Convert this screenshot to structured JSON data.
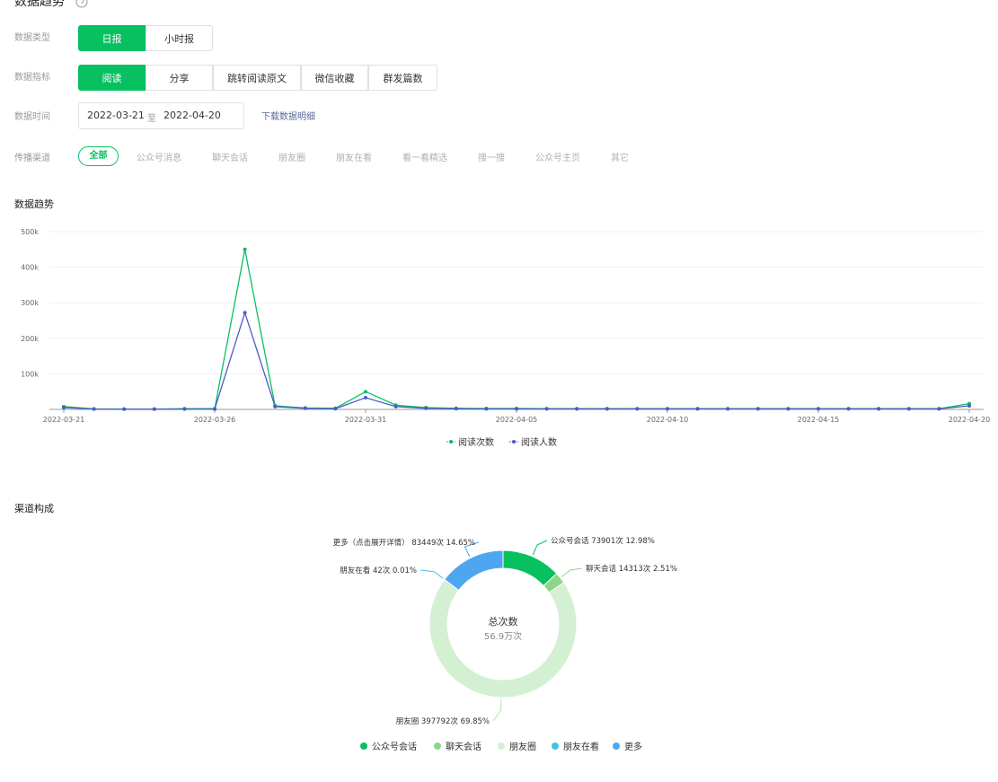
{
  "header": {
    "title": "数据趋势"
  },
  "filters": [
    {
      "label": "数据类型",
      "options": [
        "日报",
        "小时报"
      ],
      "active": 0
    },
    {
      "label": "数据指标",
      "options": [
        "阅读",
        "分享",
        "跳转阅读原文",
        "微信收藏",
        "群发篇数"
      ],
      "active": 0
    },
    {
      "label": "数据时间",
      "start": "2022-03-21",
      "separator": "至",
      "end": "2022-04-20",
      "link": "下载数据明细"
    },
    {
      "label": "传播渠道",
      "options": [
        "全部",
        "公众号消息",
        "聊天会话",
        "朋友圈",
        "朋友在看",
        "看一看精选",
        "搜一搜",
        "公众号主页",
        "其它"
      ],
      "active": 0
    }
  ],
  "chart_data": [
    {
      "type": "line",
      "title": "数据趋势",
      "categories": [
        "2022-03-21",
        null,
        null,
        null,
        null,
        "2022-03-26",
        null,
        null,
        null,
        null,
        "2022-03-31",
        null,
        null,
        null,
        null,
        "2022-04-05",
        null,
        null,
        null,
        null,
        "2022-04-10",
        null,
        null,
        null,
        null,
        "2022-04-15",
        null,
        null,
        null,
        null,
        "2022-04-20"
      ],
      "series": [
        {
          "name": "阅读次数",
          "color": "#07c160",
          "values": [
            8000,
            1500,
            1000,
            1000,
            2000,
            2000,
            450000,
            10000,
            4000,
            3000,
            50000,
            12000,
            5000,
            3000,
            2500,
            2500,
            2000,
            2000,
            2000,
            2000,
            2000,
            2000,
            2000,
            2000,
            2000,
            2000,
            2000,
            2000,
            2000,
            2000,
            16000
          ]
        },
        {
          "name": "阅读人数",
          "color": "#4b5cc4",
          "values": [
            5000,
            1000,
            500,
            500,
            1000,
            1000,
            272000,
            8000,
            3000,
            2000,
            33000,
            8000,
            3000,
            2000,
            1500,
            1500,
            1500,
            1500,
            1500,
            1500,
            1500,
            1500,
            1500,
            1500,
            1500,
            1500,
            1500,
            1500,
            1500,
            1500,
            10000
          ]
        }
      ],
      "ylim": [
        0,
        500000
      ],
      "yticks": [
        {
          "value": 100000,
          "label": "100k"
        },
        {
          "value": 200000,
          "label": "200k"
        },
        {
          "value": 300000,
          "label": "300k"
        },
        {
          "value": 400000,
          "label": "400k"
        },
        {
          "value": 500000,
          "label": "500k"
        }
      ],
      "grid": true
    },
    {
      "type": "donut",
      "title": "渠道构成",
      "center_title": "总次数",
      "center_value": "56.9万次",
      "categories": [
        "公众号会话",
        "聊天会话",
        "朋友圈",
        "朋友在看",
        "更多"
      ],
      "values": [
        73901,
        14313,
        397792,
        42,
        83449
      ],
      "value_labels": [
        "公众号会话 73901次 12.98%",
        "聊天会话 14313次 2.51%",
        "朋友圈 397792次 69.85%",
        "朋友在看 42次 0.01%",
        "更多（点击展开详情） 83449次 14.65%"
      ],
      "colors": [
        "#07c160",
        "#8ed68a",
        "#d3f0d3",
        "#43c3e8",
        "#4fa6f0"
      ]
    }
  ]
}
